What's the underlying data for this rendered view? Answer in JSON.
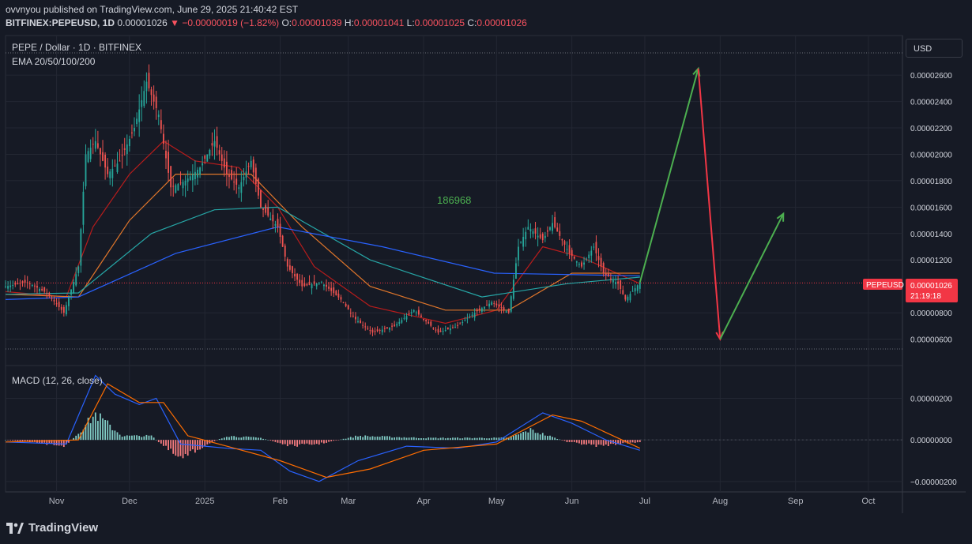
{
  "header": {
    "publisher_line": "ovvnyou published on TradingView.com, June 29, 2025 21:40:42 EST",
    "symbol": "BITFINEX:PEPEUSD, 1D",
    "last": "0.00001026",
    "change": "−0.00000019 (−1.82%)",
    "o_label": "O:",
    "o": "0.00001039",
    "h_label": "H:",
    "h": "0.00001041",
    "l_label": "L:",
    "l": "0.00001025",
    "c_label": "C:",
    "c": "0.00001026"
  },
  "legend": {
    "title": "PEPE / Dollar · 1D · BITFINEX",
    "indicator": "EMA 20/50/100/200",
    "macd": "MACD (12, 26, close)"
  },
  "currency_button": "USD",
  "price_tag": {
    "symbol": "PEPEUSD",
    "price": "0.00001026",
    "countdown": "21:19:18"
  },
  "annotation": "186968",
  "branding": "TradingView",
  "colors": {
    "up": "#26a69a",
    "down": "#ef5350",
    "ema20": "#b71c1c",
    "ema50": "#e0762b",
    "ema100": "#26a6a6",
    "ema200": "#2962ff",
    "macd_line": "#2962ff",
    "signal_line": "#ff6d00",
    "arrow_up": "#4caf50",
    "arrow_down": "#f23645",
    "annotation": "#4caf50"
  },
  "chart_data": {
    "type": "candlestick",
    "x_ticks": [
      "Nov",
      "Dec",
      "2025",
      "Feb",
      "Mar",
      "Apr",
      "May",
      "Jun",
      "Jul",
      "Aug",
      "Sep",
      "Oct"
    ],
    "x_tick_dates": [
      "2024-11-01",
      "2024-12-01",
      "2025-01-01",
      "2025-02-01",
      "2025-03-01",
      "2025-04-01",
      "2025-05-01",
      "2025-06-01",
      "2025-07-01",
      "2025-08-01",
      "2025-09-01",
      "2025-10-01"
    ],
    "x_range": [
      "2024-10-11",
      "2025-10-15"
    ],
    "price_ticks": [
      "0.00002600",
      "0.00002400",
      "0.00002200",
      "0.00002000",
      "0.00001800",
      "0.00001600",
      "0.00001400",
      "0.00001200",
      "0.00000800",
      "0.00000600",
      "0.00000400"
    ],
    "price_range": [
      4e-06,
      2.9e-05
    ],
    "macd_ticks": [
      "0.00000200",
      "0.00000000",
      "−0.00000200"
    ],
    "macd_range": [
      -2.5e-06,
      3.5e-06
    ],
    "price_path": [
      [
        "2024-10-11",
        1e-05
      ],
      [
        "2024-10-20",
        1.03e-05
      ],
      [
        "2024-10-28",
        9.5e-06
      ],
      [
        "2024-11-04",
        8e-06
      ],
      [
        "2024-11-10",
        1.15e-05
      ],
      [
        "2024-11-13",
        2e-05
      ],
      [
        "2024-11-17",
        2.1e-05
      ],
      [
        "2024-11-22",
        1.85e-05
      ],
      [
        "2024-11-27",
        1.95e-05
      ],
      [
        "2024-12-03",
        2.2e-05
      ],
      [
        "2024-12-08",
        2.55e-05
      ],
      [
        "2024-12-13",
        2.3e-05
      ],
      [
        "2024-12-18",
        1.75e-05
      ],
      [
        "2024-12-24",
        1.8e-05
      ],
      [
        "2024-12-30",
        1.9e-05
      ],
      [
        "2025-01-05",
        2.1e-05
      ],
      [
        "2025-01-10",
        1.85e-05
      ],
      [
        "2025-01-15",
        1.75e-05
      ],
      [
        "2025-01-20",
        1.95e-05
      ],
      [
        "2025-01-24",
        1.6e-05
      ],
      [
        "2025-01-31",
        1.45e-05
      ],
      [
        "2025-02-04",
        1.15e-05
      ],
      [
        "2025-02-10",
        1e-05
      ],
      [
        "2025-02-18",
        1.03e-05
      ],
      [
        "2025-02-26",
        9e-06
      ],
      [
        "2025-03-04",
        7.5e-06
      ],
      [
        "2025-03-11",
        6.5e-06
      ],
      [
        "2025-03-20",
        7e-06
      ],
      [
        "2025-03-28",
        8.2e-06
      ],
      [
        "2025-04-07",
        6.5e-06
      ],
      [
        "2025-04-15",
        7e-06
      ],
      [
        "2025-04-22",
        8e-06
      ],
      [
        "2025-04-29",
        8.8e-06
      ],
      [
        "2025-05-06",
        8e-06
      ],
      [
        "2025-05-10",
        1.3e-05
      ],
      [
        "2025-05-14",
        1.45e-05
      ],
      [
        "2025-05-20",
        1.35e-05
      ],
      [
        "2025-05-24",
        1.48e-05
      ],
      [
        "2025-05-31",
        1.25e-05
      ],
      [
        "2025-06-05",
        1.15e-05
      ],
      [
        "2025-06-10",
        1.3e-05
      ],
      [
        "2025-06-14",
        1.1e-05
      ],
      [
        "2025-06-20",
        1.02e-05
      ],
      [
        "2025-06-23",
        9e-06
      ],
      [
        "2025-06-29",
        1.03e-05
      ]
    ],
    "ema": {
      "ema20": [
        [
          "2024-10-11",
          9.6e-06
        ],
        [
          "2024-11-05",
          9.2e-06
        ],
        [
          "2024-11-16",
          1.45e-05
        ],
        [
          "2024-12-01",
          1.85e-05
        ],
        [
          "2024-12-15",
          2.1e-05
        ],
        [
          "2024-12-28",
          1.95e-05
        ],
        [
          "2025-01-15",
          1.9e-05
        ],
        [
          "2025-01-31",
          1.6e-05
        ],
        [
          "2025-02-15",
          1.15e-05
        ],
        [
          "2025-03-10",
          8.5e-06
        ],
        [
          "2025-04-10",
          7.2e-06
        ],
        [
          "2025-05-01",
          8.2e-06
        ],
        [
          "2025-05-20",
          1.3e-05
        ],
        [
          "2025-06-05",
          1.22e-05
        ],
        [
          "2025-06-29",
          1.02e-05
        ]
      ],
      "ema50": [
        [
          "2024-10-11",
          9.4e-06
        ],
        [
          "2024-11-10",
          9.2e-06
        ],
        [
          "2024-12-01",
          1.5e-05
        ],
        [
          "2024-12-20",
          1.85e-05
        ],
        [
          "2025-01-20",
          1.85e-05
        ],
        [
          "2025-02-10",
          1.45e-05
        ],
        [
          "2025-03-10",
          1e-05
        ],
        [
          "2025-04-10",
          8.2e-06
        ],
        [
          "2025-05-06",
          8.2e-06
        ],
        [
          "2025-06-01",
          1.1e-05
        ],
        [
          "2025-06-29",
          1.1e-05
        ]
      ],
      "ema100": [
        [
          "2024-10-11",
          9.4e-06
        ],
        [
          "2024-11-10",
          9.5e-06
        ],
        [
          "2024-12-10",
          1.4e-05
        ],
        [
          "2025-01-05",
          1.58e-05
        ],
        [
          "2025-01-31",
          1.6e-05
        ],
        [
          "2025-03-10",
          1.2e-05
        ],
        [
          "2025-04-25",
          9.2e-06
        ],
        [
          "2025-05-30",
          1.02e-05
        ],
        [
          "2025-06-29",
          1.07e-05
        ]
      ],
      "ema200": [
        [
          "2024-10-11",
          9e-06
        ],
        [
          "2024-11-10",
          9.2e-06
        ],
        [
          "2024-12-20",
          1.25e-05
        ],
        [
          "2025-01-31",
          1.45e-05
        ],
        [
          "2025-03-15",
          1.3e-05
        ],
        [
          "2025-04-30",
          1.1e-05
        ],
        [
          "2025-06-29",
          1.08e-05
        ]
      ]
    },
    "macd_line": [
      [
        "2024-10-11",
        -1e-07
      ],
      [
        "2024-11-05",
        -2e-07
      ],
      [
        "2024-11-17",
        3.1e-06
      ],
      [
        "2024-11-25",
        2.2e-06
      ],
      [
        "2024-12-05",
        1.7e-06
      ],
      [
        "2024-12-12",
        2e-06
      ],
      [
        "2024-12-22",
        -2e-07
      ],
      [
        "2025-01-01",
        -3e-07
      ],
      [
        "2025-01-10",
        -4e-07
      ],
      [
        "2025-01-24",
        -5e-07
      ],
      [
        "2025-02-05",
        -1.5e-06
      ],
      [
        "2025-02-17",
        -2e-06
      ],
      [
        "2025-03-05",
        -1e-06
      ],
      [
        "2025-03-25",
        -3e-07
      ],
      [
        "2025-04-15",
        -4e-07
      ],
      [
        "2025-05-01",
        -1e-07
      ],
      [
        "2025-05-20",
        1.3e-06
      ],
      [
        "2025-06-01",
        8e-07
      ],
      [
        "2025-06-15",
        0.0
      ],
      [
        "2025-06-29",
        -5e-07
      ]
    ],
    "signal_line": [
      [
        "2024-10-11",
        -1e-07
      ],
      [
        "2024-11-10",
        0.0
      ],
      [
        "2024-11-22",
        2.7e-06
      ],
      [
        "2024-12-05",
        1.8e-06
      ],
      [
        "2024-12-15",
        1.8e-06
      ],
      [
        "2024-12-25",
        2e-07
      ],
      [
        "2025-01-10",
        -3e-07
      ],
      [
        "2025-02-01",
        -1e-06
      ],
      [
        "2025-02-20",
        -1.8e-06
      ],
      [
        "2025-03-10",
        -1.4e-06
      ],
      [
        "2025-04-01",
        -5e-07
      ],
      [
        "2025-05-01",
        -2e-07
      ],
      [
        "2025-05-24",
        1.2e-06
      ],
      [
        "2025-06-05",
        9e-07
      ],
      [
        "2025-06-29",
        -4e-07
      ]
    ],
    "macd_histogram": [
      [
        "2024-10-11",
        0.0
      ],
      [
        "2024-11-05",
        -3e-07
      ],
      [
        "2024-11-17",
        1.3e-06
      ],
      [
        "2024-11-28",
        2e-07
      ],
      [
        "2024-12-10",
        2e-07
      ],
      [
        "2024-12-22",
        -1e-06
      ],
      [
        "2025-01-02",
        -2e-07
      ],
      [
        "2025-01-10",
        2e-07
      ],
      [
        "2025-01-24",
        1e-07
      ],
      [
        "2025-02-05",
        -3e-07
      ],
      [
        "2025-02-17",
        -2e-07
      ],
      [
        "2025-03-05",
        2e-07
      ],
      [
        "2025-04-01",
        1e-07
      ],
      [
        "2025-05-06",
        1e-07
      ],
      [
        "2025-05-15",
        5e-07
      ],
      [
        "2025-05-30",
        -1e-07
      ],
      [
        "2025-06-12",
        -3e-07
      ],
      [
        "2025-06-29",
        -1e-07
      ]
    ],
    "projection_arrows": [
      {
        "from": [
          "2025-06-29",
          1.03e-05
        ],
        "to": [
          "2025-07-23",
          2.65e-05
        ],
        "color": "up"
      },
      {
        "from": [
          "2025-07-23",
          2.65e-05
        ],
        "to": [
          "2025-08-01",
          6e-06
        ],
        "color": "down"
      },
      {
        "from": [
          "2025-08-01",
          6e-06
        ],
        "to": [
          "2025-08-27",
          1.55e-05
        ],
        "color": "up"
      }
    ]
  }
}
